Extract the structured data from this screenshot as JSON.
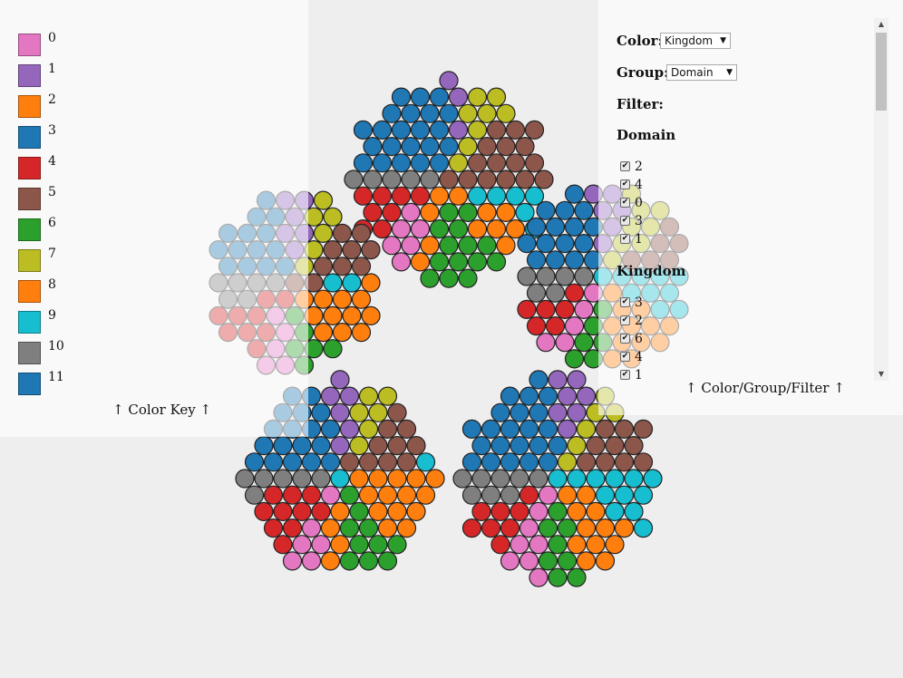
{
  "color_key": {
    "caption": "↑ Color Key ↑",
    "items": [
      {
        "label": "0",
        "color": "#e377c2"
      },
      {
        "label": "1",
        "color": "#9467bd"
      },
      {
        "label": "2",
        "color": "#ff7f0e"
      },
      {
        "label": "3",
        "color": "#1f77b4"
      },
      {
        "label": "4",
        "color": "#d62728"
      },
      {
        "label": "5",
        "color": "#8c564b"
      },
      {
        "label": "6",
        "color": "#2ca02c"
      },
      {
        "label": "7",
        "color": "#bcbd22"
      },
      {
        "label": "8",
        "color": "#ff7f0e"
      },
      {
        "label": "9",
        "color": "#17becf"
      },
      {
        "label": "10",
        "color": "#7f7f7f"
      },
      {
        "label": "11",
        "color": "#1f77b4"
      }
    ]
  },
  "controls": {
    "color_label": "Color:",
    "color_value": "Kingdom",
    "group_label": "Group:",
    "group_value": "Domain",
    "filter_label": "Filter:",
    "domain_heading": "Domain",
    "domain_items": [
      "2",
      "4",
      "0",
      "3",
      "1"
    ],
    "kingdom_heading": "Kingdom",
    "kingdom_items": [
      "3",
      "2",
      "6",
      "4",
      "1"
    ],
    "caption": "↑ Color/Group/Filter ↑"
  },
  "clusters": [
    {
      "domain": "top",
      "kingdom_counts": {
        "3": 22,
        "1": 3,
        "7": 8,
        "5": 16,
        "9": 6,
        "2": 7,
        "6": 14,
        "4": 8,
        "0": 6,
        "10": 5,
        "8": 4
      }
    },
    {
      "domain": "left",
      "kingdom_counts": {
        "3": 14,
        "1": 6,
        "7": 6,
        "2": 12,
        "6": 6,
        "5": 10,
        "0": 5,
        "4": 9,
        "10": 6,
        "9": 2
      }
    },
    {
      "domain": "right",
      "kingdom_counts": {
        "1": 6,
        "3": 16,
        "7": 8,
        "9": 10,
        "2": 12,
        "5": 6,
        "6": 6,
        "0": 5,
        "4": 6,
        "10": 6
      }
    },
    {
      "domain": "bottom-left",
      "kingdom_counts": {
        "3": 18,
        "1": 6,
        "7": 6,
        "5": 10,
        "2": 14,
        "6": 10,
        "9": 2,
        "0": 6,
        "4": 10,
        "10": 6,
        "8": 4
      }
    },
    {
      "domain": "bottom-right",
      "kingdom_counts": {
        "3": 22,
        "1": 7,
        "7": 6,
        "9": 12,
        "5": 10,
        "2": 12,
        "6": 8,
        "0": 8,
        "4": 8,
        "10": 8
      }
    }
  ]
}
